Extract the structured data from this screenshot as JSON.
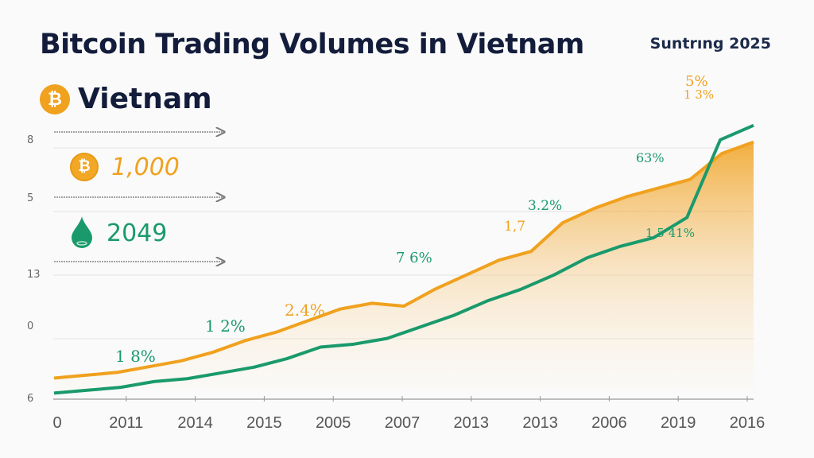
{
  "header": {
    "title": "Bitcoin Trading Volumes in Vietnam",
    "subtitle": "Vietnam",
    "subtitle_icon": "bitcoin-icon",
    "period": "Suntrıng 2025"
  },
  "legend": [
    {
      "icon": "bitcoin-coin-icon",
      "value": "1,000",
      "color": "#f0a11e"
    },
    {
      "icon": "droplet-icon",
      "value": "2049",
      "color": "#1a9a6c"
    }
  ],
  "chart_data": {
    "type": "line",
    "title": "Bitcoin Trading Volumes in Vietnam",
    "xlabel": "",
    "ylabel": "",
    "x_tick_labels": [
      "0",
      "2011",
      "2014",
      "2015",
      "2005",
      "2007",
      "2013",
      "2013",
      "2006",
      "2019",
      "2016"
    ],
    "y_tick_labels": [
      "6",
      "0",
      "13",
      "5",
      "8"
    ],
    "ylim": [
      0,
      100
    ],
    "grid": true,
    "series": [
      {
        "name": "Bitcoin",
        "color": "#f0a11e",
        "fill": "area-gradient",
        "values": [
          4,
          5,
          6,
          8,
          10,
          13,
          17,
          20,
          24,
          28,
          30,
          29,
          35,
          40,
          45,
          48,
          58,
          63,
          67,
          70,
          73,
          82,
          86
        ]
      },
      {
        "name": "Droplet",
        "color": "#1a9a6c",
        "values": [
          1,
          2,
          3,
          5,
          6,
          8,
          10,
          13,
          17,
          18,
          20,
          24,
          28,
          33,
          37,
          42,
          48,
          52,
          55,
          62,
          89,
          94
        ]
      }
    ],
    "annotations": [
      {
        "text": "1  8%",
        "color": "#1a9a6c"
      },
      {
        "text": "1  2%",
        "color": "#1a9a6c"
      },
      {
        "text": "2.4%",
        "color": "#f0a11e"
      },
      {
        "text": "7 6%",
        "color": "#1a9a6c"
      },
      {
        "text": "1,7",
        "color": "#f0a11e"
      },
      {
        "text": "3.2%",
        "color": "#1a9a6c"
      },
      {
        "text": "63%",
        "color": "#1a9a6c"
      },
      {
        "text": "1.5 41%",
        "color": "#1a9a6c"
      },
      {
        "text": "5%",
        "color": "#f0a11e"
      },
      {
        "text": "1 3%",
        "color": "#f0a11e"
      }
    ]
  }
}
